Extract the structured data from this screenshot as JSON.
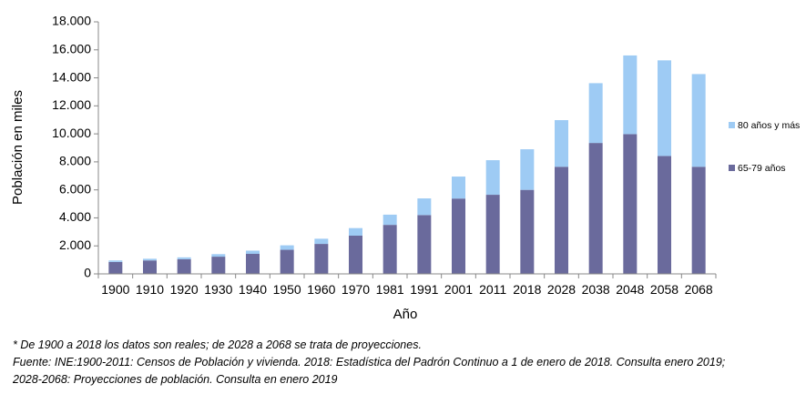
{
  "chart_data": {
    "type": "bar",
    "stacked": true,
    "categories": [
      "1900",
      "1910",
      "1920",
      "1930",
      "1940",
      "1950",
      "1960",
      "1970",
      "1981",
      "1991",
      "2001",
      "2011",
      "2018",
      "2028",
      "2038",
      "2048",
      "2058",
      "2068"
    ],
    "series": [
      {
        "name": "65-79 años",
        "color": "#6a6a9c",
        "values": [
          850,
          960,
          1050,
          1230,
          1430,
          1720,
          2140,
          2730,
          3500,
          4200,
          5380,
          5650,
          6000,
          7650,
          9350,
          9980,
          8420,
          7650
        ]
      },
      {
        "name": "80 años y más",
        "color": "#9ecbf4",
        "values": [
          110,
          120,
          130,
          180,
          230,
          320,
          370,
          540,
          730,
          1190,
          1570,
          2470,
          2900,
          3330,
          4270,
          5620,
          6830,
          6620
        ]
      }
    ],
    "ylabel": "Población en miles",
    "xlabel": "Año",
    "ylim": [
      0,
      18000
    ],
    "yticks": [
      0,
      2000,
      4000,
      6000,
      8000,
      10000,
      12000,
      14000,
      16000,
      18000
    ],
    "ytick_labels": [
      "0",
      "2.000",
      "4.000",
      "6.000",
      "8.000",
      "10.000",
      "12.000",
      "14.000",
      "16.000",
      "18.000"
    ],
    "grid": false,
    "legend_position": "right"
  },
  "notes": {
    "line1": "* De 1900 a 2018 los datos son reales; de 2028 a 2068 se trata de proyecciones.",
    "line2": "Fuente: INE:1900-2011: Censos de Población y vivienda. 2018: Estadística del Padrón Continuo a 1 de enero de 2018. Consulta enero 2019;",
    "line3": "2028-2068: Proyecciones de población. Consulta en enero 2019"
  }
}
